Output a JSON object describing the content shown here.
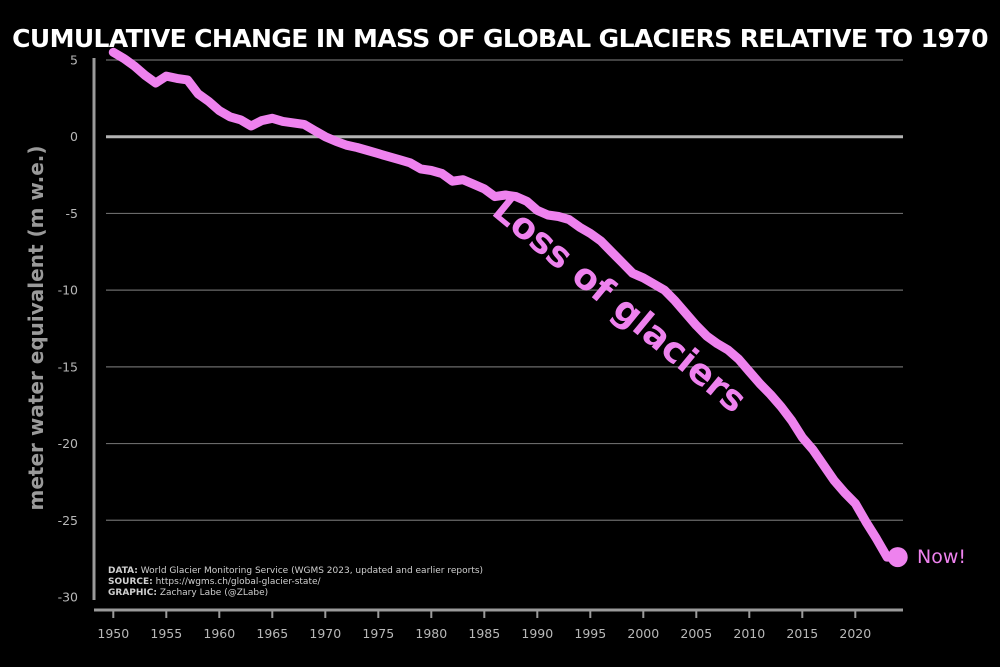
{
  "chart_data": {
    "type": "line",
    "title": "CUMULATIVE CHANGE IN MASS OF GLOBAL GLACIERS RELATIVE TO 1970",
    "ylabel": "meter water equivalent (m w.e.)",
    "xlabel": "",
    "xlim": [
      1949.5,
      2024.5
    ],
    "ylim": [
      -30,
      5
    ],
    "grid": "horizontal",
    "x_ticks": [
      1950,
      1955,
      1960,
      1965,
      1970,
      1975,
      1980,
      1985,
      1990,
      1995,
      2000,
      2005,
      2010,
      2015,
      2020
    ],
    "x_tick_labels": [
      "1950",
      "1955",
      "1960",
      "1965",
      "1970",
      "1975",
      "1980",
      "1985",
      "1990",
      "1995",
      "2000",
      "2005",
      "2010",
      "2015",
      "2020"
    ],
    "y_ticks": [
      5,
      0,
      -5,
      -10,
      -15,
      -20,
      -25,
      -30
    ],
    "y_tick_labels": [
      "5",
      "0",
      "-5",
      "-10",
      "-15",
      "-20",
      "-25",
      "-30"
    ],
    "line_color": "#ee82ee",
    "background": "#000000",
    "series": [
      {
        "x": [
          1950,
          1951,
          1952,
          1953,
          1954,
          1955,
          1956,
          1957,
          1958,
          1959,
          1960,
          1961,
          1962,
          1963,
          1964,
          1965,
          1966,
          1967,
          1968,
          1969,
          1970,
          1971,
          1972,
          1973,
          1974,
          1975,
          1976,
          1977,
          1978,
          1979,
          1980,
          1981,
          1982,
          1983,
          1984,
          1985,
          1986,
          1987,
          1988,
          1989,
          1990,
          1991,
          1992,
          1993,
          1994,
          1995,
          1996,
          1997,
          1998,
          1999,
          2000,
          2001,
          2002,
          2003,
          2004,
          2005,
          2006,
          2007,
          2008,
          2009,
          2010,
          2011,
          2012,
          2013,
          2014,
          2015,
          2016,
          2017,
          2018,
          2019,
          2020,
          2021,
          2022,
          2023,
          2024
        ],
        "values": [
          5.5,
          5.1,
          4.6,
          4.0,
          3.5,
          3.95,
          3.8,
          3.7,
          2.8,
          2.3,
          1.7,
          1.3,
          1.1,
          0.7,
          1.05,
          1.2,
          1.0,
          0.9,
          0.8,
          0.4,
          0.0,
          -0.3,
          -0.55,
          -0.7,
          -0.9,
          -1.1,
          -1.3,
          -1.5,
          -1.7,
          -2.1,
          -2.2,
          -2.4,
          -2.9,
          -2.8,
          -3.1,
          -3.4,
          -3.9,
          -3.8,
          -3.9,
          -4.2,
          -4.8,
          -5.1,
          -5.2,
          -5.4,
          -5.9,
          -6.3,
          -6.8,
          -7.5,
          -8.2,
          -8.9,
          -9.2,
          -9.6,
          -10.0,
          -10.7,
          -11.5,
          -12.3,
          -13.0,
          -13.5,
          -13.9,
          -14.5,
          -15.3,
          -16.1,
          -16.8,
          -17.6,
          -18.5,
          -19.6,
          -20.4,
          -21.4,
          -22.4,
          -23.2,
          -23.9,
          -25.1,
          -26.2,
          -27.4,
          -27.4
        ]
      }
    ],
    "annotations": [
      {
        "text": "Loss of glaciers",
        "color": "#ee82ee"
      },
      {
        "text": "Now!",
        "color": "#ee82ee"
      }
    ]
  },
  "credits": {
    "data_label": "DATA:",
    "data_text": " World Glacier Monitoring Service (WGMS 2023, updated and earlier reports)",
    "source_label": "SOURCE:",
    "source_text": " https://wgms.ch/global-glacier-state/",
    "graphic_label": "GRAPHIC:",
    "graphic_text": " Zachary Labe (@ZLabe)"
  }
}
